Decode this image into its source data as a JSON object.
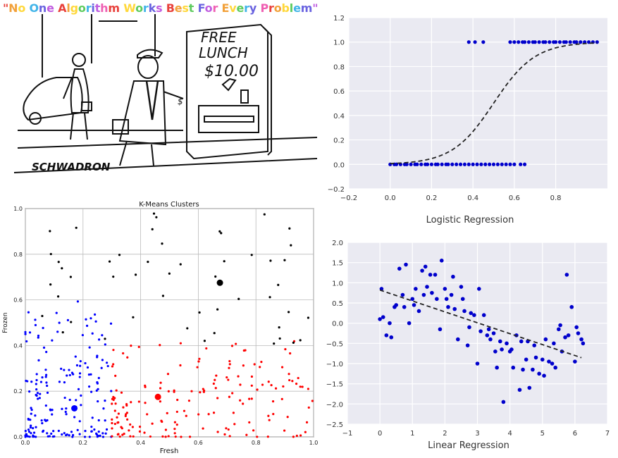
{
  "banner": {
    "text": "\"No One Algorithm Works Best For Every Problem\"",
    "colors": [
      "#e8413c",
      "#f2a13a",
      "#ffd83b",
      "#5ecb5e",
      "#41b4e8",
      "#6a63e0",
      "#c05de0",
      "#ef5fb3"
    ]
  },
  "cartoon": {
    "sign_lines": [
      "FREE",
      "LUNCH",
      "$10.00"
    ],
    "signature": "SCHWADRON",
    "price_small": "$"
  },
  "chart_data": [
    {
      "id": "kmeans",
      "type": "scatter",
      "title": "K-Means Clusters",
      "xlabel": "Fresh",
      "ylabel": "Frozen",
      "xlim": [
        0,
        1.0
      ],
      "ylim": [
        0,
        1.0
      ],
      "xticks": [
        "0.0",
        "0.2",
        "0.4",
        "0.6",
        "0.8",
        "1.0"
      ],
      "yticks": [
        "0.0",
        "0.2",
        "0.4",
        "0.6",
        "0.8",
        "1.0"
      ],
      "grid": true,
      "series": [
        {
          "color": "#0000ff",
          "x_range": [
            0.0,
            0.3
          ],
          "approx_points": 180,
          "centroid": [
            0.17,
            0.125
          ]
        },
        {
          "color": "#ff0000",
          "x_range": [
            0.3,
            1.0
          ],
          "y_range": [
            0.0,
            0.55
          ],
          "approx_points": 170,
          "centroid": [
            0.46,
            0.175
          ]
        },
        {
          "color": "#000000",
          "y_range": [
            0.4,
            1.0
          ],
          "approx_points": 50,
          "centroid": [
            0.675,
            0.675
          ]
        }
      ]
    },
    {
      "id": "logistic",
      "type": "scatter",
      "xlabel": "Logistic Regression",
      "xlim": [
        -0.2,
        1.05
      ],
      "ylim": [
        -0.2,
        1.2
      ],
      "xticks": [
        "−0.2",
        "0.0",
        "0.2",
        "0.4",
        "0.6",
        "0.8"
      ],
      "yticks": [
        "−0.2",
        "0.0",
        "0.2",
        "0.4",
        "0.6",
        "0.8",
        "1.0",
        "1.2"
      ],
      "grid": true,
      "points_color": "#0000cc",
      "class_0_x": [
        0.0,
        0.02,
        0.03,
        0.05,
        0.07,
        0.08,
        0.1,
        0.12,
        0.13,
        0.15,
        0.17,
        0.18,
        0.2,
        0.22,
        0.23,
        0.25,
        0.27,
        0.28,
        0.3,
        0.32,
        0.34,
        0.36,
        0.38,
        0.4,
        0.42,
        0.44,
        0.46,
        0.48,
        0.5,
        0.52,
        0.54,
        0.56,
        0.58,
        0.6,
        0.63,
        0.65
      ],
      "class_1_x": [
        0.38,
        0.41,
        0.45,
        0.58,
        0.6,
        0.62,
        0.64,
        0.65,
        0.67,
        0.69,
        0.7,
        0.72,
        0.74,
        0.75,
        0.77,
        0.79,
        0.8,
        0.82,
        0.84,
        0.85,
        0.87,
        0.89,
        0.9,
        0.92,
        0.94,
        0.96,
        0.98,
        1.0
      ],
      "curve": {
        "style": "dashed",
        "color": "#222222",
        "x0": 0.5,
        "k": 10,
        "x_range": [
          0.0,
          1.0
        ]
      }
    },
    {
      "id": "linear",
      "type": "scatter",
      "xlabel": "Linear Regression",
      "xlim": [
        -1,
        7
      ],
      "ylim": [
        -2.5,
        2.0
      ],
      "xticks": [
        "−1",
        "0",
        "1",
        "2",
        "3",
        "4",
        "5",
        "6",
        "7"
      ],
      "yticks": [
        "−2.5",
        "−2.0",
        "−1.5",
        "−1.0",
        "−0.5",
        "0.0",
        "0.5",
        "1.0",
        "1.5",
        "2.0"
      ],
      "grid": true,
      "points_color": "#0000cc",
      "x": [
        0.0,
        0.05,
        0.1,
        0.2,
        0.3,
        0.35,
        0.45,
        0.5,
        0.6,
        0.7,
        0.75,
        0.8,
        0.9,
        1.0,
        1.05,
        1.1,
        1.2,
        1.3,
        1.35,
        1.4,
        1.45,
        1.55,
        1.6,
        1.7,
        1.75,
        1.85,
        1.9,
        2.0,
        2.05,
        2.1,
        2.2,
        2.25,
        2.3,
        2.4,
        2.5,
        2.55,
        2.6,
        2.7,
        2.75,
        2.8,
        2.9,
        3.0,
        3.05,
        3.1,
        3.2,
        3.3,
        3.35,
        3.4,
        3.5,
        3.55,
        3.6,
        3.7,
        3.75,
        3.8,
        3.9,
        4.0,
        4.05,
        4.1,
        4.2,
        4.3,
        4.35,
        4.4,
        4.5,
        4.55,
        4.6,
        4.7,
        4.75,
        4.8,
        4.9,
        5.0,
        5.05,
        5.1,
        5.2,
        5.3,
        5.35,
        5.4,
        5.5,
        5.55,
        5.6,
        5.7,
        5.75,
        5.8,
        5.9,
        6.0,
        6.05,
        6.1,
        6.2,
        6.25
      ],
      "y": [
        0.1,
        0.85,
        0.15,
        -0.3,
        0.0,
        -0.35,
        0.4,
        0.45,
        1.35,
        0.7,
        0.4,
        1.45,
        0.0,
        0.6,
        0.45,
        0.85,
        0.3,
        1.3,
        0.7,
        1.4,
        0.9,
        1.2,
        0.75,
        1.2,
        0.6,
        -0.15,
        1.55,
        0.85,
        0.6,
        0.4,
        0.7,
        1.15,
        0.35,
        -0.4,
        0.9,
        0.6,
        0.3,
        -0.55,
        -0.1,
        0.25,
        0.2,
        -1.0,
        0.85,
        -0.2,
        0.2,
        -0.3,
        -0.15,
        -0.4,
        -0.25,
        -0.7,
        -1.1,
        -0.45,
        -0.65,
        -1.95,
        -0.5,
        -0.7,
        -0.65,
        -1.1,
        -0.3,
        -1.65,
        -0.45,
        -1.15,
        -0.9,
        -0.45,
        -1.6,
        -1.15,
        -0.55,
        -0.85,
        -1.25,
        -0.9,
        -1.3,
        -0.4,
        -0.95,
        -1.0,
        -0.5,
        -1.1,
        -0.15,
        -0.05,
        -0.7,
        -0.35,
        1.2,
        -0.3,
        0.4,
        -0.95,
        -0.1,
        -0.25,
        -0.4,
        -0.5
      ],
      "fit": {
        "style": "dashed",
        "color": "#222222",
        "x_range": [
          0.0,
          6.2
        ],
        "slope": -0.27,
        "intercept": 0.82
      }
    }
  ]
}
